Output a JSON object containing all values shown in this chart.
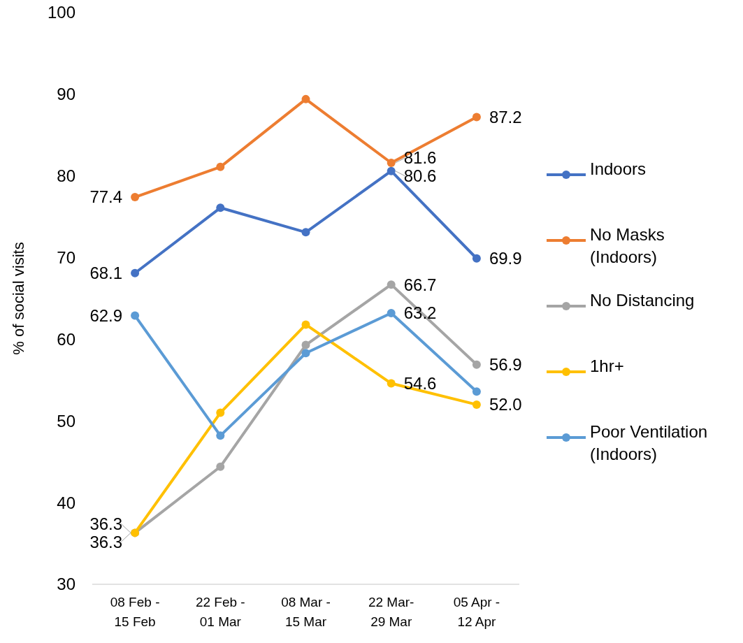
{
  "chart_data": {
    "type": "line",
    "ylabel": "% of social visits",
    "categories": [
      "08 Feb - 15 Feb",
      "22 Feb - 01 Mar",
      "08 Mar - 15 Mar",
      "22 Mar-29 Mar",
      "05 Apr - 12 Apr"
    ],
    "series": [
      {
        "name": "Indoors",
        "color": "#4472c4",
        "values": [
          68.1,
          76.1,
          73.1,
          80.6,
          69.9
        ],
        "value_labels": [
          "68.1",
          null,
          null,
          "80.6",
          "69.9"
        ]
      },
      {
        "name": "No Masks (Indoors)",
        "color": "#ed7d31",
        "values": [
          77.4,
          81.1,
          89.4,
          81.6,
          87.2
        ],
        "value_labels": [
          "77.4",
          null,
          null,
          "81.6",
          "87.2"
        ]
      },
      {
        "name": "No Distancing",
        "color": "#a5a5a5",
        "values": [
          36.3,
          44.4,
          59.3,
          66.7,
          56.9
        ],
        "value_labels": [
          "36.3",
          null,
          null,
          "66.7",
          "56.9"
        ]
      },
      {
        "name": "1hr+",
        "color": "#ffc000",
        "values": [
          36.3,
          51.0,
          61.8,
          54.6,
          52.0
        ],
        "value_labels": [
          "36.3",
          null,
          null,
          "54.6",
          "52.0"
        ]
      },
      {
        "name": "Poor Ventilation (Indoors)",
        "color": "#5b9bd5",
        "values": [
          62.9,
          48.2,
          58.3,
          63.2,
          53.6
        ],
        "value_labels": [
          "62.9",
          null,
          null,
          "63.2",
          null
        ]
      }
    ],
    "ylim": [
      30,
      100
    ],
    "yticks": [
      30,
      40,
      50,
      60,
      70,
      80,
      90,
      100
    ],
    "grid": false,
    "legend": "right",
    "marker": "circle",
    "line_style": "solid"
  }
}
